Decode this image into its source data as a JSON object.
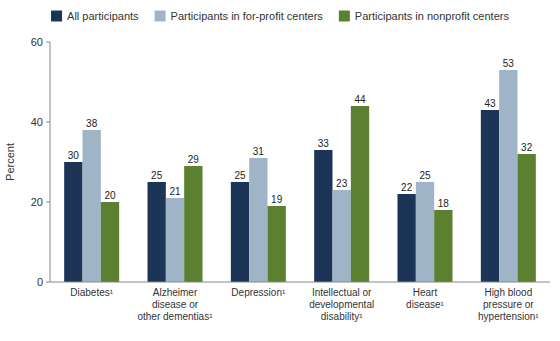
{
  "chart_data": {
    "type": "bar",
    "categories": [
      "Diabetes¹",
      "Alzheimer\ndisease or\nother dementias¹",
      "Depression¹",
      "Intellectual or\ndevelopmental\ndisability¹",
      "Heart\ndisease¹",
      "High blood\npressure or\nhypertension¹"
    ],
    "series": [
      {
        "name": "All participants",
        "color": "#1c3557",
        "values": [
          30,
          25,
          25,
          33,
          22,
          43
        ]
      },
      {
        "name": "Participants in for-profit centers",
        "color": "#a0b4c8",
        "values": [
          38,
          21,
          31,
          23,
          25,
          53
        ]
      },
      {
        "name": "Participants in nonprofit centers",
        "color": "#5b8030",
        "values": [
          20,
          29,
          19,
          44,
          18,
          32
        ]
      }
    ],
    "ylabel": "Percent",
    "ylim": [
      0,
      60
    ],
    "yticks": [
      0,
      20,
      40,
      60
    ],
    "grid": false,
    "legend": "top",
    "data_labels": true
  }
}
